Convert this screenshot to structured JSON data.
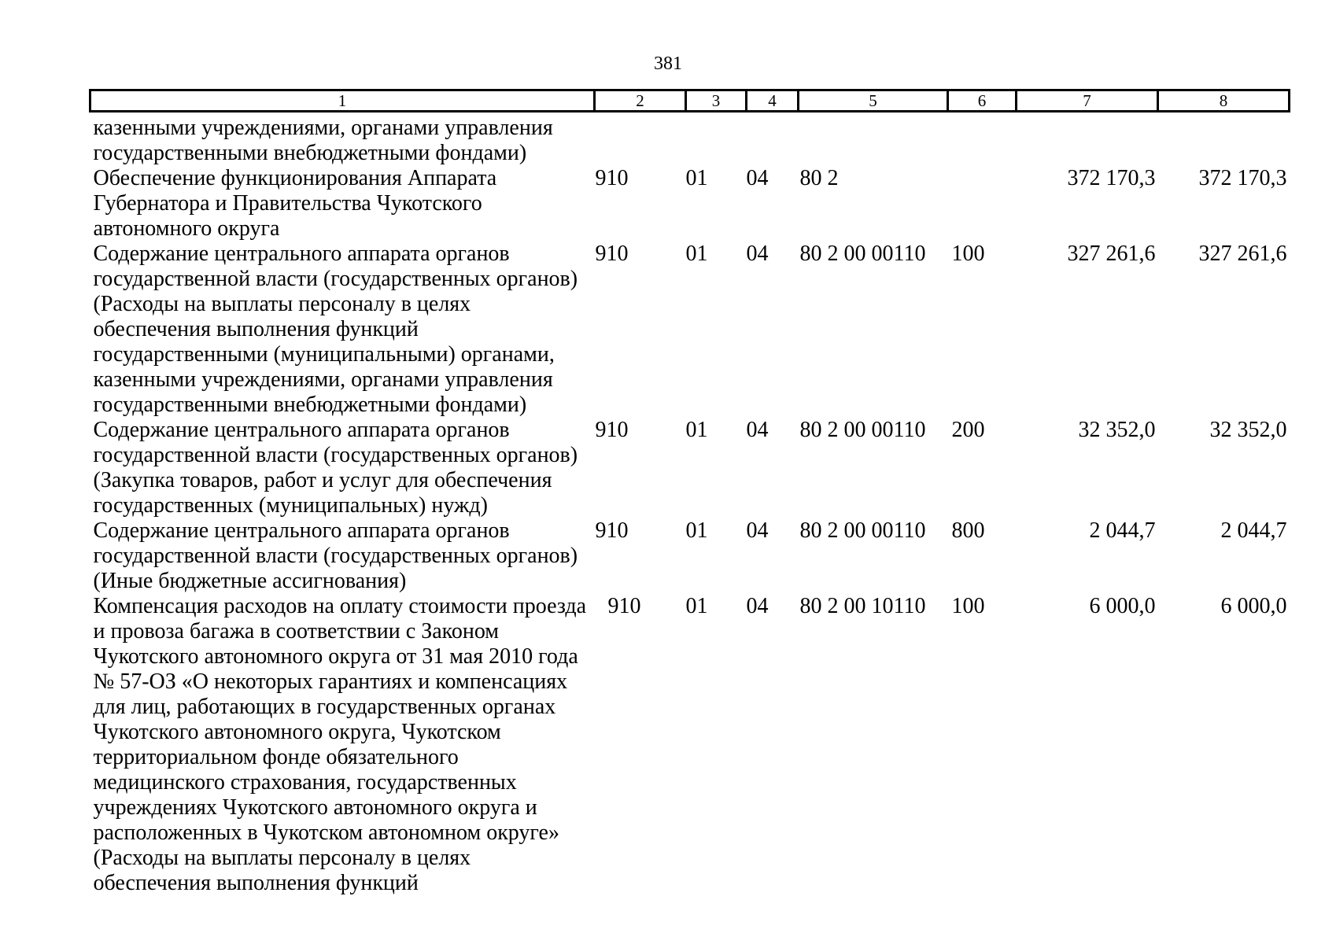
{
  "page": {
    "number": "381",
    "background_color": "#ffffff",
    "text_color": "#000000"
  },
  "table": {
    "header_columns": [
      "1",
      "2",
      "3",
      "4",
      "5",
      "6",
      "7",
      "8"
    ],
    "rows": [
      {
        "name": "казенными учреждениями, органами управления\nгосударственными внебюджетными фондами)",
        "grbs": "",
        "razdel": "",
        "podrazdel": "",
        "csr": "",
        "vr": "",
        "amount1": "",
        "amount2": ""
      },
      {
        "name": "Обеспечение функционирования Аппарата\nГубернатора и Правительства Чукотского\nавтономного округа",
        "grbs": "910",
        "razdel": "01",
        "podrazdel": "04",
        "csr": "80 2",
        "vr": "",
        "amount1": "372 170,3",
        "amount2": "372 170,3"
      },
      {
        "name": "Содержание центрального аппарата органов\nгосударственной власти (государственных органов)\n(Расходы на выплаты персоналу в целях\nобеспечения выполнения функций\nгосударственными (муниципальными) органами,\nказенными учреждениями, органами управления\nгосударственными внебюджетными фондами)",
        "grbs": "910",
        "razdel": "01",
        "podrazdel": "04",
        "csr": "80 2 00 00110",
        "vr": "100",
        "amount1": "327 261,6",
        "amount2": "327 261,6"
      },
      {
        "name": "Содержание центрального аппарата органов\nгосударственной власти (государственных органов)\n(Закупка товаров, работ и услуг для обеспечения\nгосударственных (муниципальных) нужд)",
        "grbs": "910",
        "razdel": "01",
        "podrazdel": "04",
        "csr": "80 2 00 00110",
        "vr": "200",
        "amount1": "32 352,0",
        "amount2": "32 352,0"
      },
      {
        "name": "Содержание центрального аппарата органов\nгосударственной власти (государственных органов)\n(Иные бюджетные ассигнования)",
        "grbs": "910",
        "razdel": "01",
        "podrazdel": "04",
        "csr": "80 2 00 00110",
        "vr": "800",
        "amount1": "2 044,7",
        "amount2": "2 044,7"
      },
      {
        "name": "Компенсация расходов на оплату стоимости проезда\nи провоза багажа в соответствии с Законом\nЧукотского автономного округа от 31 мая 2010 года\n№ 57-ОЗ «О некоторых гарантиях и компенсациях\nдля лиц, работающих в государственных органах\nЧукотского автономного округа, Чукотском\nтерриториальном фонде обязательного\nмедицинского страхования, государственных\nучреждениях Чукотского автономного округа и\nрасположенных в Чукотском автономном округе»\n(Расходы на выплаты персоналу в целях\nобеспечения выполнения функций",
        "grbs": "910",
        "razdel": "01",
        "podrazdel": "04",
        "csr": "80 2 00 10110",
        "vr": "100",
        "amount1": "6 000,0",
        "amount2": "6 000,0"
      }
    ]
  }
}
